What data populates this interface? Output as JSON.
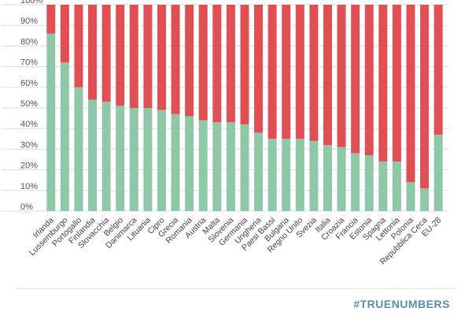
{
  "chart_data": {
    "type": "bar",
    "stacked": true,
    "categories": [
      "Irlanda",
      "Lussemburgo",
      "Portogallo",
      "Finlandia",
      "Slovacchia",
      "Belgio",
      "Danimarca",
      "Lituania",
      "Cipro",
      "Grecia",
      "Romania",
      "Austria",
      "Malta",
      "Slovenia",
      "Germania",
      "Ungheria",
      "Paesi Bassi",
      "Bulgaria",
      "Regno Unito",
      "Svezia",
      "Italia",
      "Croazia",
      "Francia",
      "Estonia",
      "Spagna",
      "Lettonia",
      "Polonia",
      "Repubblica Ceca",
      "EU-28"
    ],
    "series": [
      {
        "values": [
          86,
          72,
          60,
          54,
          53,
          51,
          50,
          50,
          49,
          47,
          46,
          44,
          43,
          43,
          42,
          38,
          35,
          35,
          35,
          34,
          32,
          31,
          28,
          27,
          24,
          24,
          14,
          11,
          37
        ]
      },
      {
        "values": [
          14,
          28,
          40,
          46,
          47,
          49,
          50,
          50,
          51,
          53,
          54,
          56,
          57,
          57,
          58,
          62,
          65,
          65,
          65,
          66,
          68,
          69,
          72,
          73,
          76,
          76,
          86,
          89,
          63
        ]
      }
    ],
    "yticks": [
      "0%",
      "10%",
      "20%",
      "30%",
      "40%",
      "50%",
      "60%",
      "70%",
      "80%",
      "90%",
      "100%"
    ],
    "ylim": [
      0,
      100
    ],
    "grid": true,
    "colors": {
      "lower": "#8fc7a9",
      "upper": "#df4f53",
      "grid": "#dddddd"
    }
  },
  "brand": "#TRUENUMBERS"
}
